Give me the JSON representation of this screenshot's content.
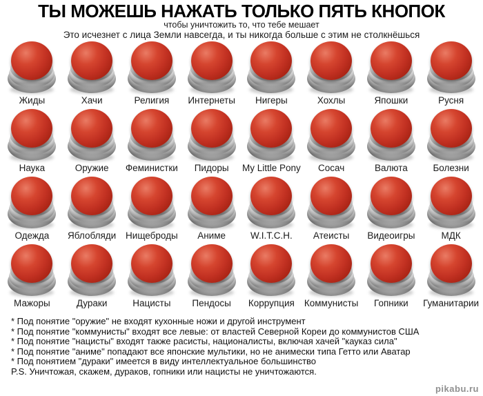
{
  "header": {
    "title": "ТЫ МОЖЕШЬ НАЖАТЬ ТОЛЬКО ПЯТЬ КНОПОК",
    "subtitle_line1": "чтобы уничтожить то, что тебе мешает",
    "subtitle_line2": "Это исчезнет с лица Земли навсегда, и ты никогда больше с этим не столкнёшься"
  },
  "buttons": [
    {
      "label": "Жиды"
    },
    {
      "label": "Хачи"
    },
    {
      "label": "Религия"
    },
    {
      "label": "Интернеты"
    },
    {
      "label": "Нигеры"
    },
    {
      "label": "Хохлы"
    },
    {
      "label": "Япошки"
    },
    {
      "label": "Русня"
    },
    {
      "label": "Наука"
    },
    {
      "label": "Оружие"
    },
    {
      "label": "Феминистки"
    },
    {
      "label": "Пидоры"
    },
    {
      "label": "My Little Pony"
    },
    {
      "label": "Сосач"
    },
    {
      "label": "Валюта"
    },
    {
      "label": "Болезни"
    },
    {
      "label": "Одежда"
    },
    {
      "label": "Яблобляди"
    },
    {
      "label": "Нищеброды"
    },
    {
      "label": "Аниме"
    },
    {
      "label": "W.I.T.C.H."
    },
    {
      "label": "Атеисты"
    },
    {
      "label": "Видеоигры"
    },
    {
      "label": "МДК"
    },
    {
      "label": "Мажоры"
    },
    {
      "label": "Дураки"
    },
    {
      "label": "Нацисты"
    },
    {
      "label": "Пендосы"
    },
    {
      "label": "Коррупция"
    },
    {
      "label": "Коммунисты"
    },
    {
      "label": "Гопники"
    },
    {
      "label": "Гуманитарии"
    }
  ],
  "footnotes": [
    "* Под понятие \"оружие\" не входят кухонные ножи и другой инструмент",
    "* Под понятие \"коммунисты\" входят все левые: от властей Северной Кореи до коммунистов США",
    "* Под понятие \"нацисты\" входят также расисты, националисты, включая хачей \"кауказ сила\"",
    "* Под понятие \"аниме\" попадают все японские мультики, но не анимески типа Гетто или Аватар",
    "* Под понятием \"дураки\" имеется в виду интеллектуальное большинство",
    "P.S. Уничтожая, скажем, дураков, гопники или нацисты не уничтожаются."
  ],
  "watermark": "pikabu.ru",
  "colors": {
    "button_red": "#c23122",
    "button_red_highlight": "#ea7b64",
    "base_silver": "#e7e7e7",
    "background": "#ffffff",
    "text": "#000000",
    "watermark_gray": "#8f8f8f"
  }
}
